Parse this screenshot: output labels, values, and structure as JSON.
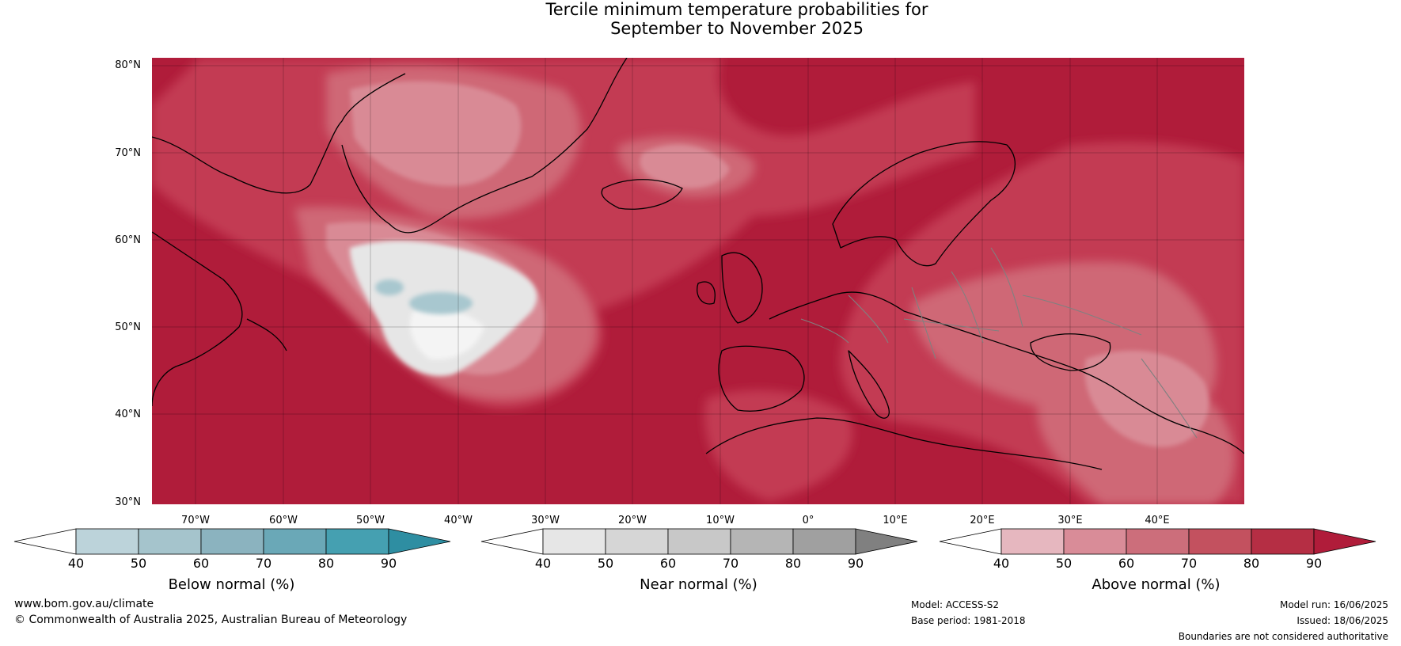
{
  "title_line1": "Tercile minimum temperature probabilities for",
  "title_line2": "September to November 2025",
  "map": {
    "lat_labels": [
      "80°N",
      "70°N",
      "60°N",
      "50°N",
      "40°N",
      "30°N"
    ],
    "lon_labels": [
      "70°W",
      "60°W",
      "50°W",
      "40°W",
      "30°W",
      "20°W",
      "10°W",
      "0°",
      "10°E",
      "20°E",
      "30°E",
      "40°E"
    ],
    "colors": {
      "above_90": "#b01c3a",
      "above_80": "#c33a52",
      "above_70": "#cf6776",
      "above_60": "#d98a95",
      "near": "#e6e6e6",
      "below": "#a8c7cf",
      "land_line": "#000000",
      "border_line": "#808080"
    }
  },
  "legends": [
    {
      "label": "Below normal (%)",
      "ticks": [
        "40",
        "50",
        "60",
        "70",
        "80",
        "90"
      ],
      "colors": [
        "#bcd3da",
        "#a5c4cc",
        "#8bb3bf",
        "#6aa8b7",
        "#45a0b1",
        "#2e8ea2"
      ]
    },
    {
      "label": "Near normal (%)",
      "ticks": [
        "40",
        "50",
        "60",
        "70",
        "80",
        "90"
      ],
      "colors": [
        "#e6e6e6",
        "#d6d6d6",
        "#c8c8c8",
        "#b5b5b5",
        "#a0a0a0",
        "#808080"
      ]
    },
    {
      "label": "Above normal (%)",
      "ticks": [
        "40",
        "50",
        "60",
        "70",
        "80",
        "90"
      ],
      "colors": [
        "#e6b7bf",
        "#d98c98",
        "#cc6e7b",
        "#c3515f",
        "#b52e44",
        "#b01c3a"
      ]
    }
  ],
  "footer": {
    "url": "www.bom.gov.au/climate",
    "copyright": "© Commonwealth of Australia 2025, Australian Bureau of Meteorology",
    "model": "Model: ACCESS-S2",
    "base_period": "Base period: 1981-2018",
    "model_run": "Model run: 16/06/2025",
    "issued": "Issued: 18/06/2025",
    "disclaimer": "Boundaries are not considered authoritative"
  }
}
